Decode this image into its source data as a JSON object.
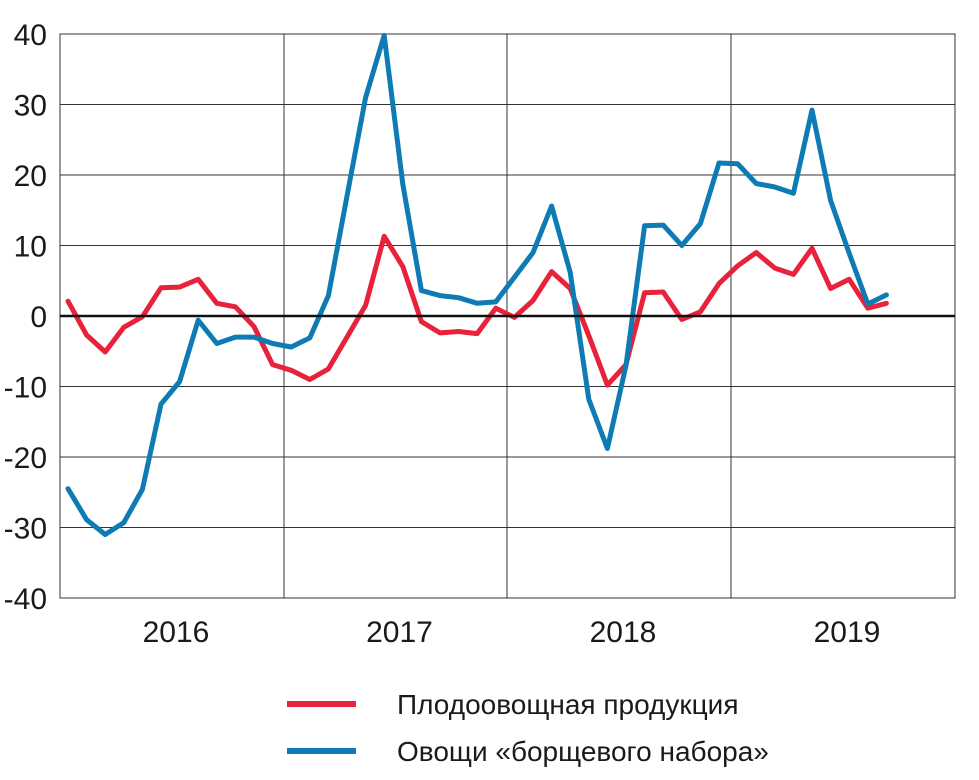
{
  "chart_data": {
    "type": "line",
    "x_start": "2016-01",
    "x_step": "month",
    "xticks": [
      "2016",
      "2017",
      "2018",
      "2019"
    ],
    "ylim": [
      -40,
      40
    ],
    "yticks": [
      -40,
      -30,
      -20,
      -10,
      0,
      10,
      20,
      30,
      40
    ],
    "grid": true,
    "legend_position": "bottom-center",
    "series": [
      {
        "name": "Плодоовощная продукция",
        "color": "#e8223a",
        "values": [
          2.1,
          -2.7,
          -5.1,
          -1.6,
          -0.1,
          4.0,
          4.1,
          5.2,
          1.8,
          1.3,
          -1.5,
          -6.9,
          -7.7,
          -9.0,
          -7.5,
          -3.0,
          1.5,
          11.3,
          7.0,
          -0.8,
          -2.4,
          -2.2,
          -2.5,
          1.1,
          -0.2,
          2.2,
          6.3,
          3.9,
          -2.8,
          -9.8,
          -6.9,
          3.3,
          3.4,
          -0.5,
          0.6,
          4.6,
          7.1,
          9.0,
          6.8,
          5.9,
          9.6,
          3.9,
          5.2,
          1.1,
          1.8
        ]
      },
      {
        "name": "Овощи «борщевого набора»",
        "color": "#0f7bb5",
        "values": [
          -24.5,
          -28.9,
          -31.0,
          -29.3,
          -24.6,
          -12.5,
          -9.3,
          -0.6,
          -3.9,
          -3.0,
          -3.0,
          -3.9,
          -4.4,
          -3.1,
          2.9,
          17.0,
          31.0,
          39.8,
          18.7,
          3.6,
          2.9,
          2.6,
          1.8,
          2.0,
          5.5,
          9.0,
          15.6,
          6.2,
          -11.8,
          -18.8,
          -7.0,
          12.8,
          12.9,
          10.0,
          13.1,
          21.7,
          21.6,
          18.8,
          18.3,
          17.4,
          29.2,
          16.4,
          8.9,
          1.7,
          3.0
        ]
      }
    ]
  }
}
